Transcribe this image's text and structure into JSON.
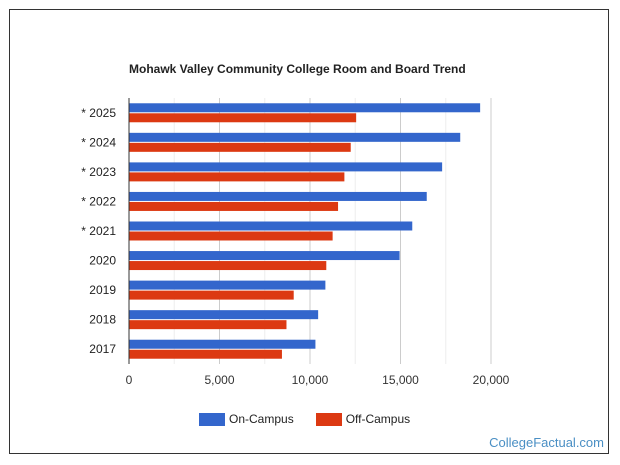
{
  "chart_data": {
    "type": "bar",
    "orientation": "horizontal",
    "title": "Mohawk Valley Community College Room and Board Trend",
    "categories": [
      "* 2025",
      "* 2024",
      "* 2023",
      "* 2022",
      "* 2021",
      "2020",
      "2019",
      "2018",
      "2017"
    ],
    "series": [
      {
        "name": "On-Campus",
        "color": "#3366cc",
        "values": [
          19400,
          18300,
          17300,
          16450,
          15650,
          14950,
          10850,
          10450,
          10300
        ]
      },
      {
        "name": "Off-Campus",
        "color": "#dc3912",
        "values": [
          12550,
          12250,
          11900,
          11550,
          11250,
          10900,
          9100,
          8700,
          8450
        ]
      }
    ],
    "xticks": [
      "0",
      "5,000",
      "10,000",
      "15,000",
      "20,000"
    ],
    "xlim": [
      0,
      20000
    ],
    "grid": true,
    "legend_position": "bottom"
  },
  "watermark": "CollegeFactual.com"
}
